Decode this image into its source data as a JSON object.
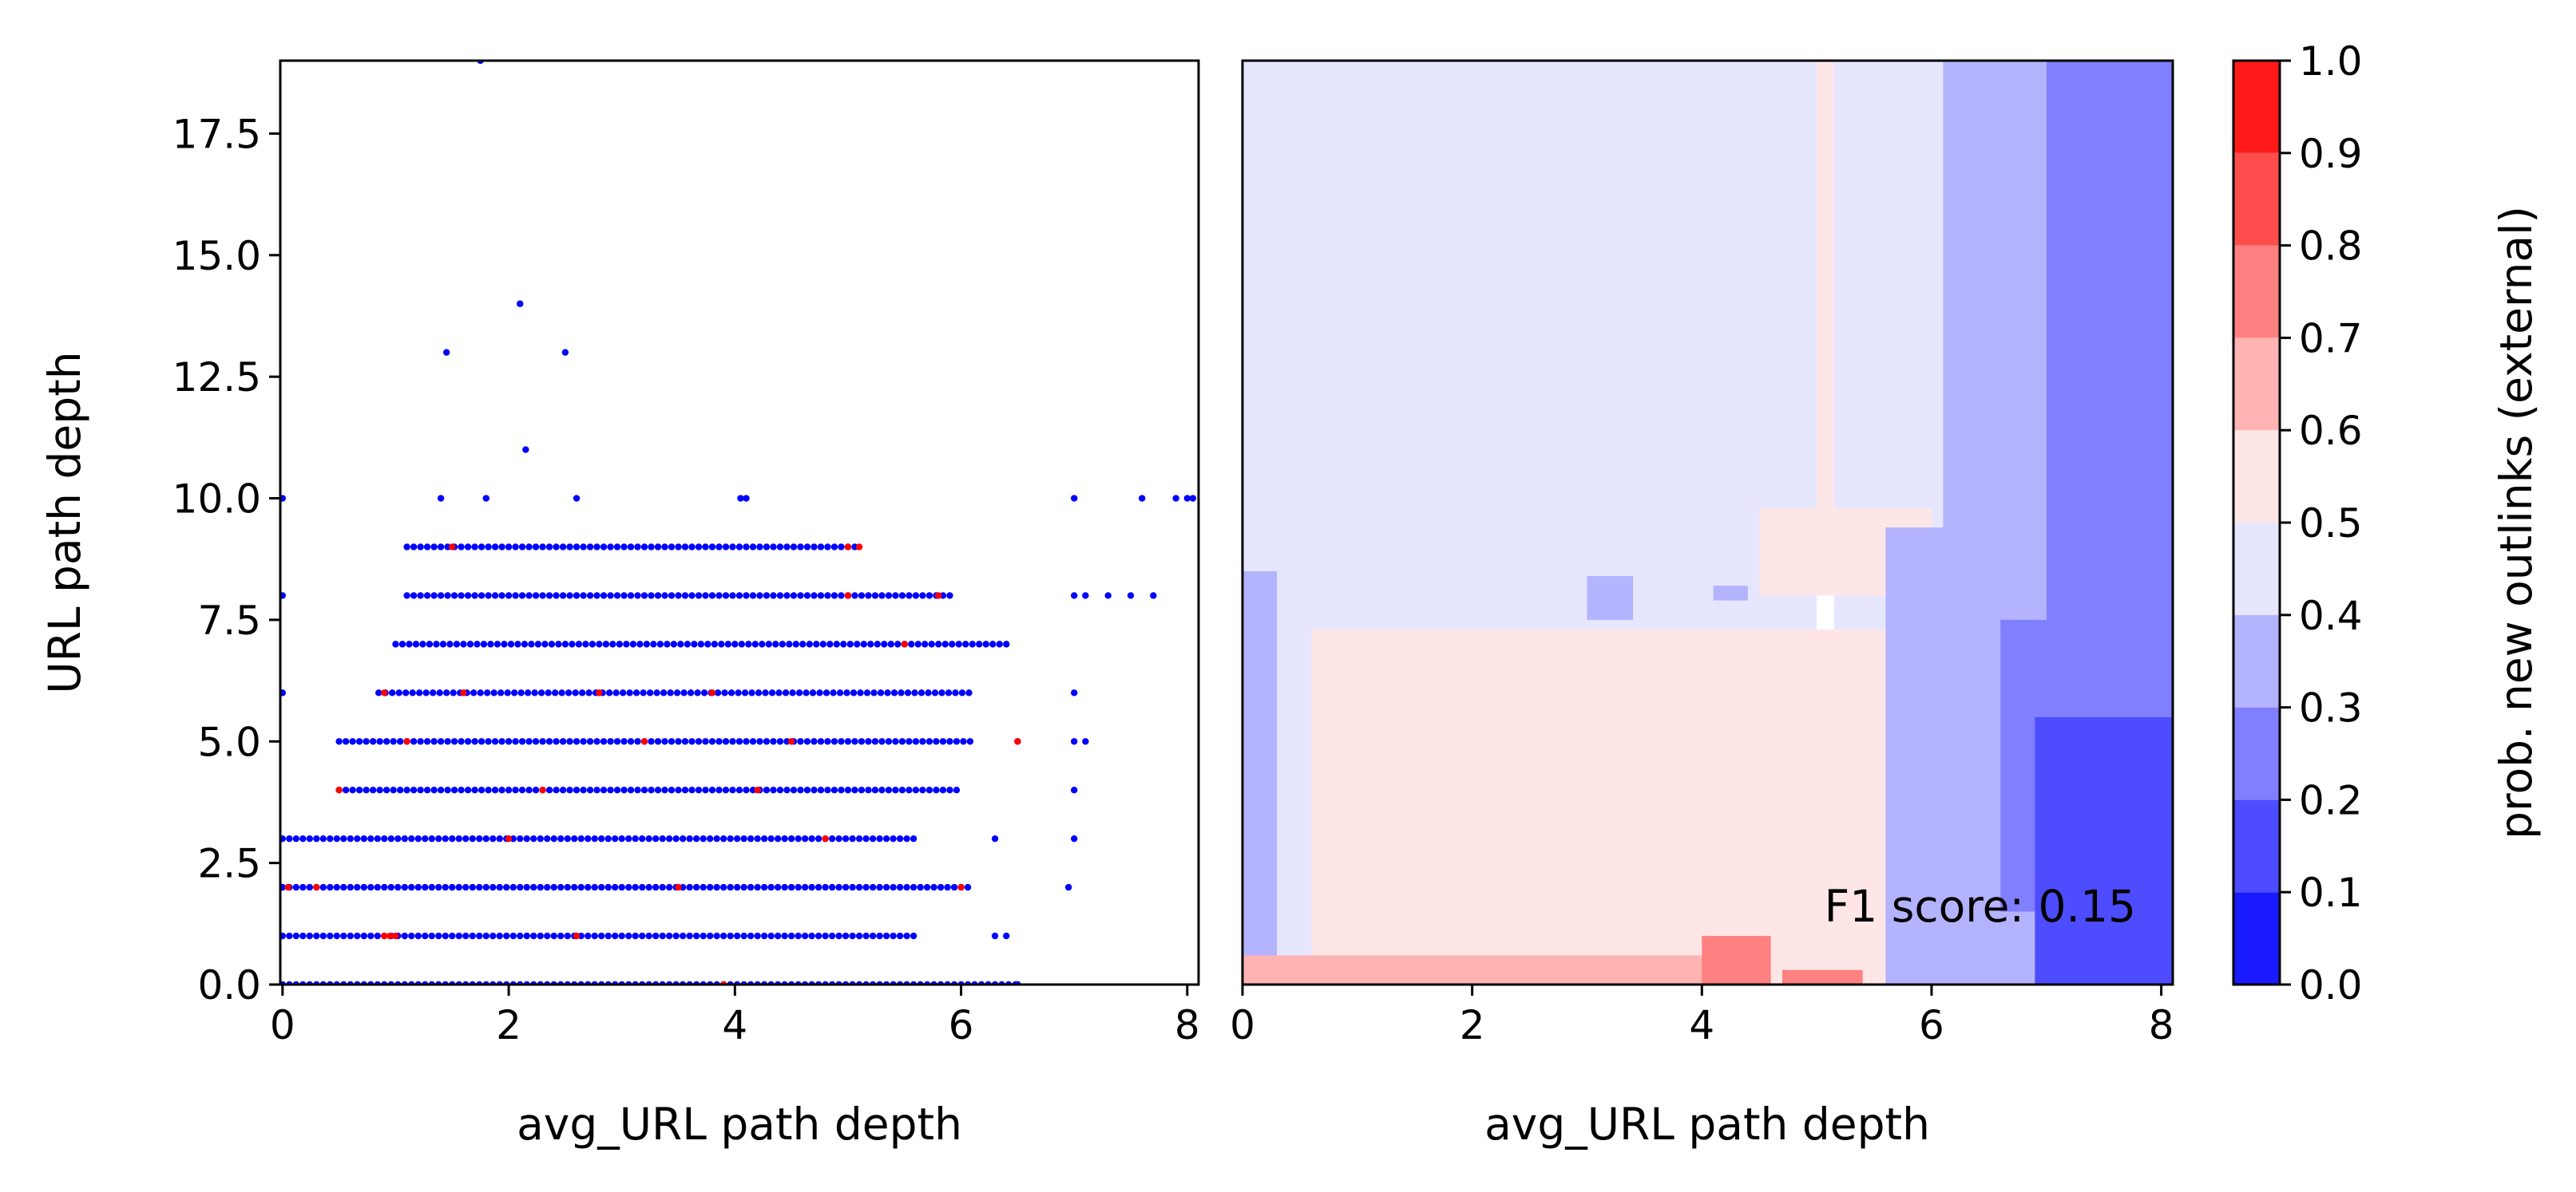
{
  "chart_data": [
    {
      "type": "scatter",
      "xlabel": "avg_URL path depth",
      "ylabel": "URL path depth",
      "xlim": [
        -0.02,
        8.1
      ],
      "ylim": [
        0,
        19
      ],
      "xticks": [
        "0",
        "2",
        "4",
        "6",
        "8"
      ],
      "yticks": [
        "0.0",
        "2.5",
        "5.0",
        "7.5",
        "10.0",
        "12.5",
        "15.0",
        "17.5"
      ],
      "grid": false,
      "series": [
        {
          "color": "#0000ff",
          "rows": [
            {
              "y": 0,
              "x_min": 0,
              "x_max": 6.5
            },
            {
              "y": 1,
              "x_min": 0,
              "x_max": 5.6
            },
            {
              "y": 2,
              "x_min": 0,
              "x_max": 6.1
            },
            {
              "y": 3,
              "x_min": 0,
              "x_max": 5.6
            },
            {
              "y": 4,
              "x_min": 0.5,
              "x_max": 6.0
            },
            {
              "y": 5,
              "x_min": 0.5,
              "x_max": 6.1
            },
            {
              "y": 6,
              "x_min": 0.85,
              "x_max": 6.1
            },
            {
              "y": 7,
              "x_min": 1.0,
              "x_max": 6.4
            },
            {
              "y": 8,
              "x_min": 1.1,
              "x_max": 5.9
            },
            {
              "y": 9,
              "x_min": 1.1,
              "x_max": 5.1
            }
          ],
          "points": [
            {
              "x": 0,
              "y": 8
            },
            {
              "x": 0,
              "y": 10
            },
            {
              "x": 0,
              "y": 6
            },
            {
              "x": 0,
              "y": 2
            },
            {
              "x": 1.75,
              "y": 19
            },
            {
              "x": 2.1,
              "y": 14
            },
            {
              "x": 1.45,
              "y": 13
            },
            {
              "x": 2.5,
              "y": 13
            },
            {
              "x": 2.15,
              "y": 11
            },
            {
              "x": 1.4,
              "y": 10
            },
            {
              "x": 1.8,
              "y": 10
            },
            {
              "x": 2.6,
              "y": 10
            },
            {
              "x": 4.05,
              "y": 10
            },
            {
              "x": 4.1,
              "y": 10
            },
            {
              "x": 7.0,
              "y": 10
            },
            {
              "x": 7.6,
              "y": 10
            },
            {
              "x": 7.9,
              "y": 10
            },
            {
              "x": 8.0,
              "y": 10
            },
            {
              "x": 8.05,
              "y": 10
            },
            {
              "x": 7.0,
              "y": 8
            },
            {
              "x": 7.1,
              "y": 8
            },
            {
              "x": 7.3,
              "y": 8
            },
            {
              "x": 7.5,
              "y": 8
            },
            {
              "x": 7.7,
              "y": 8
            },
            {
              "x": 7.0,
              "y": 6
            },
            {
              "x": 7.0,
              "y": 5
            },
            {
              "x": 7.1,
              "y": 5
            },
            {
              "x": 7.0,
              "y": 4
            },
            {
              "x": 7.0,
              "y": 3
            },
            {
              "x": 6.95,
              "y": 2
            },
            {
              "x": 6.4,
              "y": 1
            },
            {
              "x": 6.3,
              "y": 1
            },
            {
              "x": 6.5,
              "y": 0
            },
            {
              "x": 6.3,
              "y": 3
            },
            {
              "x": 6.5,
              "y": 5
            }
          ]
        },
        {
          "color": "#ff0000",
          "points": [
            {
              "x": 0.05,
              "y": 2
            },
            {
              "x": 0.3,
              "y": 2
            },
            {
              "x": 0.9,
              "y": 1
            },
            {
              "x": 0.95,
              "y": 1
            },
            {
              "x": 1.0,
              "y": 1
            },
            {
              "x": 0.5,
              "y": 4
            },
            {
              "x": 0.9,
              "y": 6
            },
            {
              "x": 1.1,
              "y": 5
            },
            {
              "x": 1.5,
              "y": 9
            },
            {
              "x": 2.3,
              "y": 4
            },
            {
              "x": 2.8,
              "y": 6
            },
            {
              "x": 3.2,
              "y": 5
            },
            {
              "x": 3.5,
              "y": 2
            },
            {
              "x": 3.8,
              "y": 6
            },
            {
              "x": 4.2,
              "y": 4
            },
            {
              "x": 4.5,
              "y": 5
            },
            {
              "x": 5.0,
              "y": 9
            },
            {
              "x": 5.1,
              "y": 9
            },
            {
              "x": 5.0,
              "y": 8
            },
            {
              "x": 5.5,
              "y": 7
            },
            {
              "x": 5.8,
              "y": 8
            },
            {
              "x": 6.0,
              "y": 2
            },
            {
              "x": 6.5,
              "y": 5
            },
            {
              "x": 4.8,
              "y": 3
            },
            {
              "x": 2.0,
              "y": 3
            },
            {
              "x": 2.6,
              "y": 1
            },
            {
              "x": 3.9,
              "y": 0
            },
            {
              "x": 1.6,
              "y": 6
            }
          ]
        }
      ]
    },
    {
      "type": "heatmap",
      "xlabel": "avg_URL path depth",
      "xlim": [
        0,
        8.1
      ],
      "ylim": [
        0,
        19
      ],
      "xticks": [
        "0",
        "2",
        "4",
        "6",
        "8"
      ],
      "annotation": "F1 score: 0.15",
      "regions": [
        {
          "x0": 0.0,
          "x1": 5.0,
          "y0": 0,
          "y1": 19,
          "value": 0.45
        },
        {
          "x0": 5.0,
          "x1": 5.15,
          "y0": 9,
          "y1": 19,
          "value": 0.55
        },
        {
          "x0": 5.15,
          "x1": 6.1,
          "y0": 0,
          "y1": 19,
          "value": 0.45
        },
        {
          "x0": 6.1,
          "x1": 7.0,
          "y0": 0,
          "y1": 19,
          "value": 0.35
        },
        {
          "x0": 7.0,
          "x1": 8.1,
          "y0": 0,
          "y1": 19,
          "value": 0.25
        },
        {
          "x0": 0.6,
          "x1": 5.6,
          "y0": 0,
          "y1": 7.3,
          "value": 0.55
        },
        {
          "x0": 4.5,
          "x1": 6.0,
          "y0": 8.0,
          "y1": 9.8,
          "value": 0.55
        },
        {
          "x0": 3.0,
          "x1": 3.4,
          "y0": 7.5,
          "y1": 8.4,
          "value": 0.35
        },
        {
          "x0": 4.1,
          "x1": 4.4,
          "y0": 7.9,
          "y1": 8.2,
          "value": 0.35
        },
        {
          "x0": 5.6,
          "x1": 6.9,
          "y0": 5.0,
          "y1": 9.4,
          "value": 0.35
        },
        {
          "x0": 5.6,
          "x1": 6.2,
          "y0": 0,
          "y1": 5.5,
          "value": 0.35
        },
        {
          "x0": 6.6,
          "x1": 7.3,
          "y0": 1.5,
          "y1": 7.5,
          "value": 0.25
        },
        {
          "x0": 0.0,
          "x1": 0.3,
          "y0": 0,
          "y1": 8.5,
          "value": 0.35
        },
        {
          "x0": 6.9,
          "x1": 8.1,
          "y0": 0,
          "y1": 5.5,
          "value": 0.15
        },
        {
          "x0": 0.0,
          "x1": 4.2,
          "y0": 0,
          "y1": 0.6,
          "value": 0.65
        },
        {
          "x0": 4.0,
          "x1": 4.6,
          "y0": 0,
          "y1": 1.0,
          "value": 0.75
        },
        {
          "x0": 4.7,
          "x1": 5.4,
          "y0": 0,
          "y1": 0.3,
          "value": 0.75
        }
      ],
      "colorbar": {
        "label": "prob. new outlinks (external)",
        "ticks": [
          "0.0",
          "0.1",
          "0.2",
          "0.3",
          "0.4",
          "0.5",
          "0.6",
          "0.7",
          "0.8",
          "0.9",
          "1.0"
        ],
        "levels": [
          {
            "from": 0.0,
            "to": 0.1,
            "color": "#1a1aff"
          },
          {
            "from": 0.1,
            "to": 0.2,
            "color": "#4d4dff"
          },
          {
            "from": 0.2,
            "to": 0.3,
            "color": "#8080ff"
          },
          {
            "from": 0.3,
            "to": 0.4,
            "color": "#b3b3ff"
          },
          {
            "from": 0.4,
            "to": 0.5,
            "color": "#e6e6ff"
          },
          {
            "from": 0.5,
            "to": 0.6,
            "color": "#ffe6e6"
          },
          {
            "from": 0.6,
            "to": 0.7,
            "color": "#ffb3b3"
          },
          {
            "from": 0.7,
            "to": 0.8,
            "color": "#ff8080"
          },
          {
            "from": 0.8,
            "to": 0.9,
            "color": "#ff4d4d"
          },
          {
            "from": 0.9,
            "to": 1.0,
            "color": "#ff1a1a"
          }
        ]
      }
    }
  ]
}
